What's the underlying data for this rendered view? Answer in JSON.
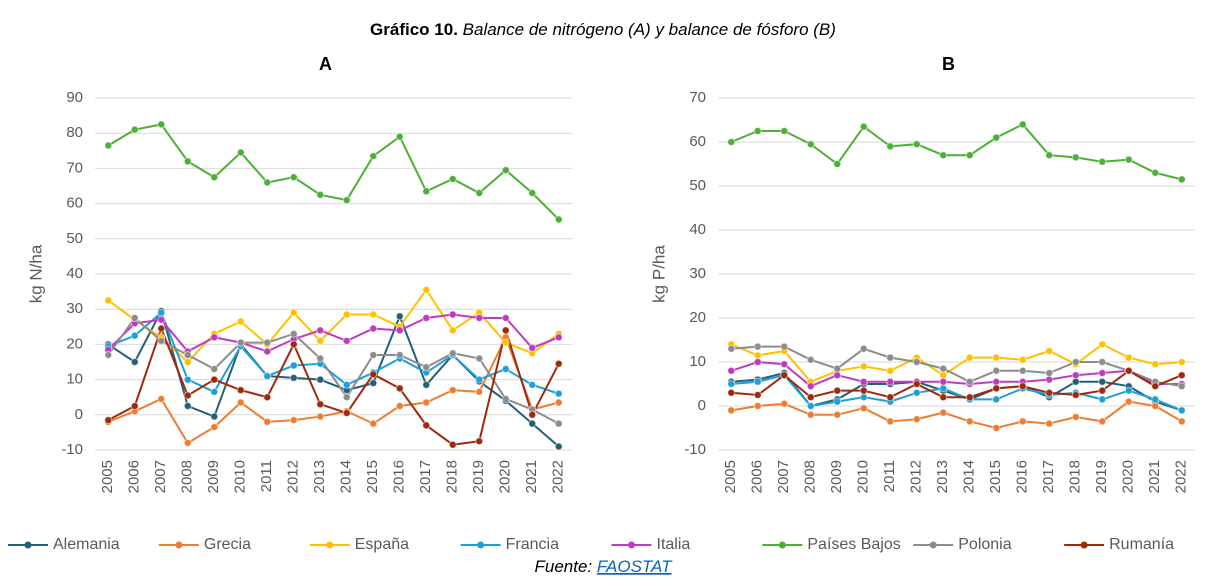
{
  "header": {
    "label": "Gráfico 10.",
    "title": "Balance de nitrógeno (A) y balance de fósforo (B)"
  },
  "chart_data": [
    {
      "type": "line",
      "title": "A",
      "y_label": "kg N/ha",
      "categories": [
        "2005",
        "2006",
        "2007",
        "2008",
        "2009",
        "2010",
        "2011",
        "2012",
        "2013",
        "2014",
        "2015",
        "2016",
        "2017",
        "2018",
        "2019",
        "2020",
        "2021",
        "2022"
      ],
      "ylim": [
        -10,
        90
      ],
      "yticks": [
        -10,
        0,
        10,
        20,
        30,
        40,
        50,
        60,
        70,
        80,
        90
      ],
      "grid": true,
      "series": [
        {
          "name": "Alemania",
          "color": "#255e79",
          "values": [
            20,
            15,
            29.5,
            2.5,
            -0.5,
            20,
            11,
            10.5,
            10,
            7,
            9,
            28,
            8.5,
            17,
            9.5,
            4,
            -2.5,
            -9
          ]
        },
        {
          "name": "Grecia",
          "color": "#ed7d31",
          "values": [
            -2,
            1,
            4.5,
            -8,
            -3.5,
            3.5,
            -2,
            -1.5,
            -0.5,
            1,
            -2.5,
            2.5,
            3.5,
            7,
            6.5,
            22,
            1.5,
            3.5
          ]
        },
        {
          "name": "España",
          "color": "#ffc000",
          "values": [
            32.5,
            27,
            22,
            15,
            23,
            26.5,
            20,
            29,
            21,
            28.5,
            28.5,
            25,
            35.5,
            24,
            29,
            20.5,
            17.5,
            23
          ]
        },
        {
          "name": "Francia",
          "color": "#1e9fd8",
          "values": [
            19.5,
            22.5,
            29,
            10,
            6.5,
            19.5,
            11,
            14,
            14.5,
            8.5,
            12,
            16,
            12,
            17,
            10,
            13,
            8.5,
            6
          ]
        },
        {
          "name": "Italia",
          "color": "#c03ac0",
          "values": [
            18.5,
            26,
            27,
            18,
            22,
            20.5,
            18,
            21.5,
            24,
            21,
            24.5,
            24,
            27.5,
            28.5,
            27.5,
            27.5,
            19,
            22
          ]
        },
        {
          "name": "Países Bajos",
          "color": "#4caf36",
          "values": [
            76.5,
            81,
            82.5,
            72,
            67.5,
            74.5,
            66,
            67.5,
            62.5,
            61,
            73.5,
            79,
            63.5,
            67,
            63,
            69.5,
            63,
            55.5
          ]
        },
        {
          "name": "Polonia",
          "color": "#8c8c8c",
          "values": [
            17,
            27.5,
            21,
            17,
            13,
            20.5,
            20.5,
            23,
            16,
            5,
            17,
            17,
            13.5,
            17.5,
            16,
            4.5,
            1.5,
            -2.5
          ]
        },
        {
          "name": "Rumanía",
          "color": "#9e2a0e",
          "values": [
            -1.5,
            2.5,
            24.5,
            5.5,
            10,
            7,
            5,
            20,
            3,
            0.5,
            11.5,
            7.5,
            -3,
            -8.5,
            -7.5,
            24,
            0,
            14.5
          ]
        }
      ]
    },
    {
      "type": "line",
      "title": "B",
      "y_label": "kg P/ha",
      "categories": [
        "2005",
        "2006",
        "2007",
        "2008",
        "2009",
        "2010",
        "2011",
        "2012",
        "2013",
        "2014",
        "2015",
        "2016",
        "2017",
        "2018",
        "2019",
        "2020",
        "2021",
        "2022"
      ],
      "ylim": [
        -10,
        70
      ],
      "yticks": [
        -10,
        0,
        10,
        20,
        30,
        40,
        50,
        60,
        70
      ],
      "grid": true,
      "series": [
        {
          "name": "Alemania",
          "color": "#255e79",
          "values": [
            5.5,
            6,
            7.5,
            0,
            1.5,
            5,
            5,
            5.5,
            3.5,
            1.5,
            4,
            4.5,
            2,
            5.5,
            5.5,
            4.5,
            1,
            -1
          ]
        },
        {
          "name": "Grecia",
          "color": "#ed7d31",
          "values": [
            -1,
            0,
            0.5,
            -2,
            -2,
            -0.5,
            -3.5,
            -3,
            -1.5,
            -3.5,
            -5,
            -3.5,
            -4,
            -2.5,
            -3.5,
            1,
            0,
            -3.5
          ]
        },
        {
          "name": "España",
          "color": "#ffc000",
          "values": [
            14,
            11.5,
            12.5,
            5.5,
            8,
            9,
            8,
            11,
            7,
            11,
            11,
            10.5,
            12.5,
            9.5,
            14,
            11,
            9.5,
            10
          ]
        },
        {
          "name": "Francia",
          "color": "#1e9fd8",
          "values": [
            5,
            5.5,
            7,
            0,
            1,
            2,
            1,
            3,
            4,
            1.5,
            1.5,
            4,
            2.5,
            3,
            1.5,
            3.5,
            1.5,
            -1
          ]
        },
        {
          "name": "Italia",
          "color": "#c03ac0",
          "values": [
            8,
            10,
            9.5,
            4.5,
            7,
            5.5,
            5.5,
            5.5,
            5.5,
            5,
            5.5,
            5.5,
            6,
            7,
            7.5,
            8,
            5,
            5
          ]
        },
        {
          "name": "Países Bajos",
          "color": "#4caf36",
          "values": [
            60,
            62.5,
            62.5,
            59.5,
            55,
            63.5,
            59,
            59.5,
            57,
            57,
            61,
            64,
            57,
            56.5,
            55.5,
            56,
            53,
            51.5
          ]
        },
        {
          "name": "Polonia",
          "color": "#8c8c8c",
          "values": [
            13,
            13.5,
            13.5,
            10.5,
            8.5,
            13,
            11,
            10,
            8.5,
            5.5,
            8,
            8,
            7.5,
            10,
            10,
            8,
            5.5,
            4.5
          ]
        },
        {
          "name": "Rumanía",
          "color": "#9e2a0e",
          "values": [
            3,
            2.5,
            7,
            2,
            3.5,
            3.5,
            2,
            5,
            2,
            2,
            4,
            4.5,
            3,
            2.5,
            3.5,
            8,
            4.5,
            7
          ]
        }
      ]
    }
  ],
  "source": {
    "label": "Fuente:",
    "link": "FAOSTAT"
  }
}
